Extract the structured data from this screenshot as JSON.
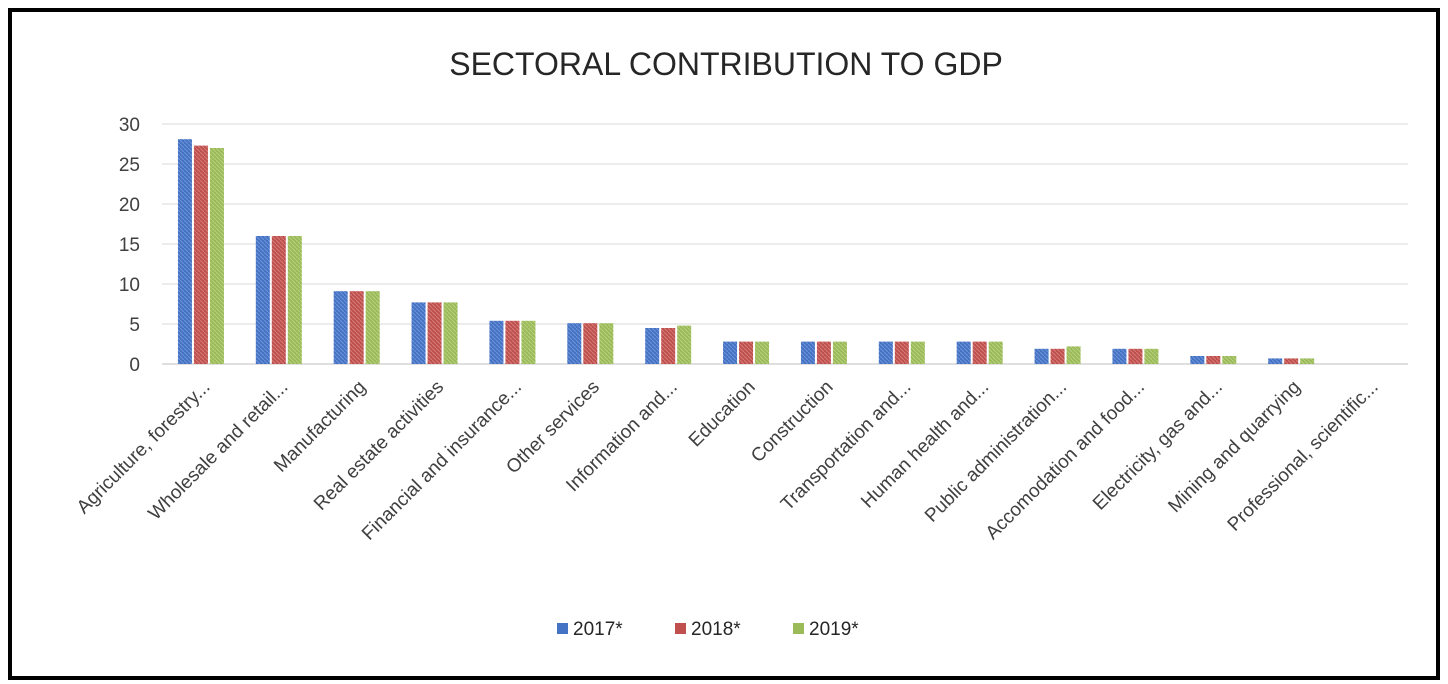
{
  "chart_data": {
    "type": "bar",
    "title": "SECTORAL CONTRIBUTION TO GDP",
    "xlabel": "",
    "ylabel": "",
    "ylim": [
      0,
      30
    ],
    "yticks": [
      0,
      5,
      10,
      15,
      20,
      25,
      30
    ],
    "grid": true,
    "legend_position": "bottom",
    "categories": [
      "Agriculture, forestry...",
      "Wholesale and retail...",
      "Manufacturing",
      "Real estate activities",
      "Financial and insurance...",
      "Other services",
      "Information and...",
      "Education",
      "Construction",
      "Transportation and...",
      "Human health and...",
      "Public administration...",
      "Accomodation and food...",
      "Electricity, gas and...",
      "Mining and quarrying",
      "Professional, scientific..."
    ],
    "series": [
      {
        "name": "2017*",
        "color": "#4472c4",
        "values": [
          28.1,
          16.0,
          9.1,
          7.7,
          5.4,
          5.1,
          4.5,
          2.8,
          2.8,
          2.8,
          2.8,
          1.9,
          1.9,
          1.0,
          0.7,
          0.0
        ]
      },
      {
        "name": "2018*",
        "color": "#c0504d",
        "values": [
          27.3,
          16.0,
          9.1,
          7.7,
          5.4,
          5.1,
          4.5,
          2.8,
          2.8,
          2.8,
          2.8,
          1.9,
          1.9,
          1.0,
          0.7,
          0.0
        ]
      },
      {
        "name": "2019*",
        "color": "#9bbb59",
        "values": [
          27.0,
          16.0,
          9.1,
          7.7,
          5.4,
          5.1,
          4.8,
          2.8,
          2.8,
          2.8,
          2.8,
          2.2,
          1.9,
          1.0,
          0.7,
          0.0
        ]
      }
    ]
  }
}
